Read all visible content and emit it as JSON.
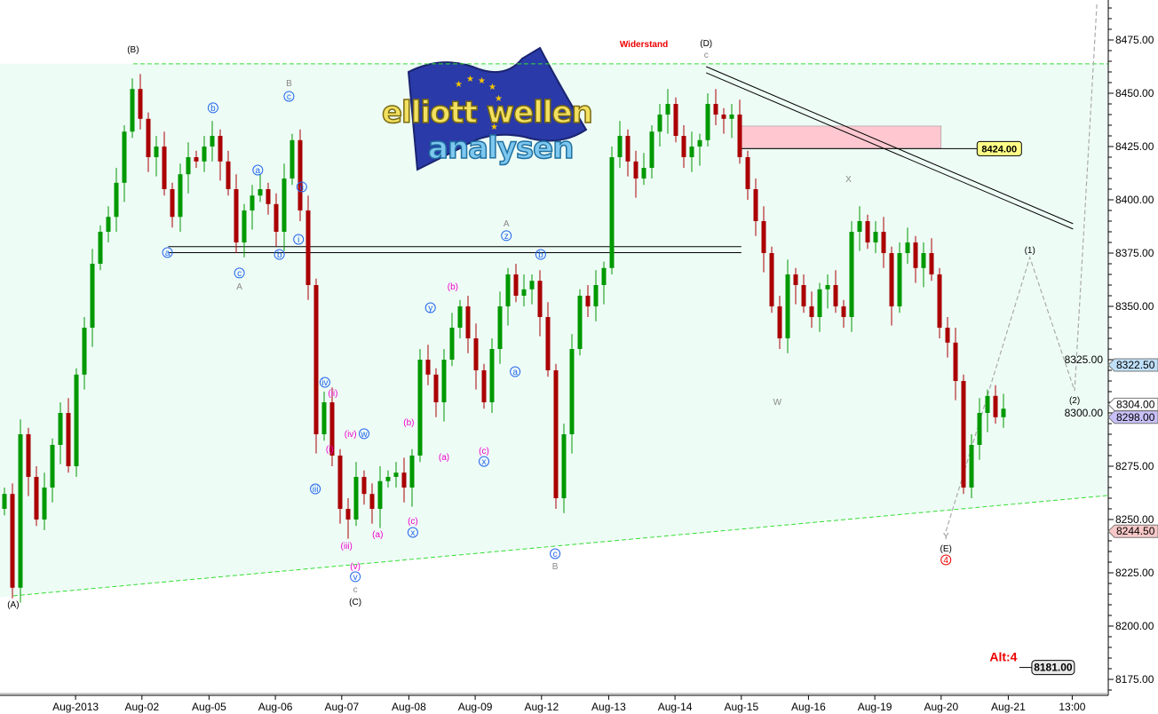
{
  "logo": {
    "line1": "elliott wellen",
    "line2": "analysen"
  },
  "chart_data": {
    "type": "candlestick",
    "title": "",
    "xlabel": "",
    "ylabel": "",
    "ylim": [
      8165,
      8493
    ],
    "grid": false,
    "colors": {
      "up": "#009900",
      "down": "#aa0000",
      "channel": "#33dd33",
      "fill": "#eefcf6"
    },
    "y_ticks": [
      8475,
      8450,
      8425,
      8400,
      8375,
      8350,
      8325,
      8300,
      8275,
      8250,
      8225,
      8200,
      8175
    ],
    "y_tick_labels": [
      "8475.00",
      "8450.00",
      "8425.00",
      "8400.00",
      "8375.00",
      "8350.00",
      "8325.00",
      "8300.00",
      "8275.00",
      "8250.00",
      "8225.00",
      "8200.00",
      "8175.00"
    ],
    "x_ticks": [
      {
        "label": "Aug-2013",
        "bar": 8.9
      },
      {
        "label": "Aug-02",
        "bar": 17.2
      },
      {
        "label": "Aug-05",
        "bar": 25.6
      },
      {
        "label": "Aug-06",
        "bar": 33.9
      },
      {
        "label": "Aug-07",
        "bar": 42.2
      },
      {
        "label": "Aug-08",
        "bar": 50.6
      },
      {
        "label": "Aug-09",
        "bar": 58.9
      },
      {
        "label": "Aug-12",
        "bar": 67.2
      },
      {
        "label": "Aug-13",
        "bar": 75.6
      },
      {
        "label": "Aug-14",
        "bar": 83.9
      },
      {
        "label": "Aug-15",
        "bar": 92.2
      },
      {
        "label": "Aug-16",
        "bar": 100.6
      },
      {
        "label": "Aug-19",
        "bar": 108.9
      },
      {
        "label": "Aug-20",
        "bar": 117.2
      },
      {
        "label": "Aug-21",
        "bar": 125.6
      },
      {
        "label": "13:00",
        "bar": 133.6
      }
    ],
    "first_open": 8255,
    "closes": [
      8262,
      8218,
      8290,
      8270,
      8250,
      8265,
      8285,
      8300,
      8275,
      8318,
      8340,
      8370,
      8385,
      8392,
      8408,
      8432,
      8452,
      8438,
      8420,
      8425,
      8405,
      8392,
      8412,
      8420,
      8418,
      8425,
      8430,
      8418,
      8405,
      8380,
      8395,
      8402,
      8405,
      8398,
      8385,
      8410,
      8428,
      8395,
      8360,
      8290,
      8305,
      8280,
      8255,
      8250,
      8270,
      8262,
      8255,
      8268,
      8270,
      8272,
      8265,
      8280,
      8325,
      8318,
      8305,
      8325,
      8340,
      8350,
      8335,
      8320,
      8305,
      8330,
      8350,
      8365,
      8355,
      8358,
      8362,
      8345,
      8320,
      8260,
      8290,
      8330,
      8355,
      8350,
      8360,
      8368,
      8420,
      8430,
      8418,
      8410,
      8415,
      8432,
      8440,
      8445,
      8430,
      8420,
      8425,
      8428,
      8445,
      8440,
      8438,
      8440,
      8420,
      8405,
      8390,
      8375,
      8350,
      8335,
      8365,
      8360,
      8350,
      8345,
      8358,
      8360,
      8350,
      8345,
      8385,
      8390,
      8380,
      8385,
      8375,
      8350,
      8375,
      8380,
      8368,
      8375,
      8365,
      8340,
      8333,
      8315,
      8265,
      8285,
      8300,
      8308,
      8298,
      8302
    ],
    "price_tags": [
      {
        "label": "8322.50",
        "price": 8322.5,
        "color": "#bfe0f8"
      },
      {
        "label": "8304.00",
        "price": 8304.0,
        "color": "#ffffff"
      },
      {
        "label": "8298.00",
        "price": 8298.0,
        "color": "#c8c0f8"
      },
      {
        "label": "8244.50",
        "price": 8244.5,
        "color": "#f8c8c8"
      }
    ],
    "levels": [
      {
        "label": "8424.00",
        "price": 8424,
        "from_bar": 92.2,
        "to_bar": 121.7,
        "color": "#ffff88"
      }
    ],
    "resistance_zone": {
      "from_bar": 92.2,
      "to_bar": 117.2,
      "low": 8424.2,
      "high": 8434.6,
      "color": "#ffc8d0"
    },
    "alt_label": {
      "text": "Alt:4",
      "value_label": "8181.00",
      "price": 8181,
      "bar": 126.1
    },
    "lines": [
      {
        "kind": "support-1",
        "color": "#000000",
        "dash": false,
        "points": [
          [
            20.5,
            8378.0
          ],
          [
            92.2,
            8378.0
          ]
        ]
      },
      {
        "kind": "support-2",
        "color": "#000000",
        "dash": false,
        "points": [
          [
            20.5,
            8375.2
          ],
          [
            92.2,
            8375.2
          ]
        ]
      },
      {
        "kind": "channel-upper",
        "color": "#33dd33",
        "dash": true,
        "points": [
          [
            16.1,
            8463.8
          ],
          [
            138.1,
            8463.8
          ]
        ]
      },
      {
        "kind": "channel-lower",
        "color": "#33dd33",
        "dash": true,
        "points": [
          [
            1.1,
            8214.2
          ],
          [
            138.1,
            8261.3
          ]
        ]
      },
      {
        "kind": "trend-1",
        "color": "#000000",
        "dash": false,
        "points": [
          [
            87.8,
            8462.5
          ],
          [
            133.7,
            8388.8
          ]
        ]
      },
      {
        "kind": "trend-2",
        "color": "#000000",
        "dash": false,
        "points": [
          [
            87.8,
            8459.6
          ],
          [
            133.7,
            8386.3
          ]
        ]
      },
      {
        "kind": "projection",
        "color": "#aaaaaa",
        "dash": true,
        "points": [
          [
            117.8,
            8244.5
          ],
          [
            128.3,
            8373
          ],
          [
            133.9,
            8310.4
          ],
          [
            136.7,
            8493
          ]
        ]
      }
    ],
    "annotations": [
      {
        "text": "(A)",
        "bar": 1.1,
        "price": 8208.8,
        "color": "#000000"
      },
      {
        "text": "(B)",
        "bar": 16.1,
        "price": 8469.2,
        "color": "#000000"
      },
      {
        "text": "(D)",
        "bar": 87.8,
        "price": 8472.1,
        "color": "#000000"
      },
      {
        "text": "c",
        "bar": 87.8,
        "price": 8466.7,
        "color": "#888888"
      },
      {
        "text": "Widerstand",
        "bar": 80,
        "price": 8471.7,
        "color": "#ee0000",
        "bold": true
      },
      {
        "text": "(C)",
        "bar": 43.9,
        "price": 8210,
        "color": "#000000"
      },
      {
        "text": "c",
        "bar": 43.9,
        "price": 8215.8,
        "color": "#888888"
      },
      {
        "text": "v",
        "bar": 43.9,
        "price": 8221.7,
        "color": "#2266ee",
        "circle": true
      },
      {
        "text": "(v)",
        "bar": 43.9,
        "price": 8226.7,
        "color": "#ee00cc"
      },
      {
        "text": "(iii)",
        "bar": 42.8,
        "price": 8236.3,
        "color": "#ee00cc"
      },
      {
        "text": "(ii)",
        "bar": 41.1,
        "price": 8307.9,
        "color": "#ee00cc"
      },
      {
        "text": "iv",
        "bar": 40.1,
        "price": 8312.9,
        "color": "#2266ee",
        "circle": true
      },
      {
        "text": "iii",
        "bar": 38.9,
        "price": 8262.9,
        "color": "#2266ee",
        "circle": true
      },
      {
        "text": "(i)",
        "bar": 40.7,
        "price": 8281.7,
        "color": "#ee00cc"
      },
      {
        "text": "(iv)",
        "bar": 43.3,
        "price": 8288.8,
        "color": "#ee00cc"
      },
      {
        "text": "w",
        "bar": 45,
        "price": 8288.8,
        "color": "#2266ee",
        "circle": true
      },
      {
        "text": "(a)",
        "bar": 46.7,
        "price": 8241.7,
        "color": "#ee00cc"
      },
      {
        "text": "x",
        "bar": 51.1,
        "price": 8242.5,
        "color": "#2266ee",
        "circle": true
      },
      {
        "text": "(c)",
        "bar": 51.1,
        "price": 8247.9,
        "color": "#ee00cc"
      },
      {
        "text": "(b)",
        "bar": 50.6,
        "price": 8294.2,
        "color": "#ee00cc"
      },
      {
        "text": "(a)",
        "bar": 55,
        "price": 8277.9,
        "color": "#ee00cc"
      },
      {
        "text": "(c)",
        "bar": 60,
        "price": 8280.8,
        "color": "#ee00cc"
      },
      {
        "text": "x",
        "bar": 60,
        "price": 8275.8,
        "color": "#2266ee",
        "circle": true
      },
      {
        "text": "(b)",
        "bar": 56.1,
        "price": 8357.9,
        "color": "#ee00cc"
      },
      {
        "text": "y",
        "bar": 53.3,
        "price": 8347.9,
        "color": "#2266ee",
        "circle": true
      },
      {
        "text": "A",
        "bar": 62.8,
        "price": 8387.5,
        "color": "#888888"
      },
      {
        "text": "z",
        "bar": 62.8,
        "price": 8381.7,
        "color": "#2266ee",
        "circle": true
      },
      {
        "text": "b",
        "bar": 67.1,
        "price": 8372.9,
        "color": "#2266ee",
        "circle": true
      },
      {
        "text": "a",
        "bar": 63.9,
        "price": 8317.9,
        "color": "#2266ee",
        "circle": true
      },
      {
        "text": "c",
        "bar": 68.9,
        "price": 8232.5,
        "color": "#2266ee",
        "circle": true
      },
      {
        "text": "B",
        "bar": 68.9,
        "price": 8226.7,
        "color": "#888888"
      },
      {
        "text": "a",
        "bar": 20.4,
        "price": 8373.8,
        "color": "#2266ee",
        "circle": true
      },
      {
        "text": "c",
        "bar": 29.4,
        "price": 8364.2,
        "color": "#2266ee",
        "circle": true
      },
      {
        "text": "A",
        "bar": 29.4,
        "price": 8357.9,
        "color": "#888888"
      },
      {
        "text": "b",
        "bar": 34.4,
        "price": 8372.9,
        "color": "#2266ee",
        "circle": true
      },
      {
        "text": "i",
        "bar": 36.8,
        "price": 8380,
        "color": "#2266ee",
        "circle": true
      },
      {
        "text": "ii",
        "bar": 37.2,
        "price": 8404.6,
        "color": "#2266ee",
        "circle": true
      },
      {
        "text": "c",
        "bar": 35.6,
        "price": 8447.1,
        "color": "#2266ee",
        "circle": true
      },
      {
        "text": "B",
        "bar": 35.6,
        "price": 8453.3,
        "color": "#888888"
      },
      {
        "text": "b",
        "bar": 26.1,
        "price": 8441.7,
        "color": "#2266ee",
        "circle": true
      },
      {
        "text": "a",
        "bar": 31.7,
        "price": 8412.5,
        "color": "#2266ee",
        "circle": true
      },
      {
        "text": "W",
        "bar": 96.7,
        "price": 8303.8,
        "color": "#888888"
      },
      {
        "text": "X",
        "bar": 105.6,
        "price": 8408.3,
        "color": "#888888"
      },
      {
        "text": "Y",
        "bar": 117.8,
        "price": 8240.8,
        "color": "#888888"
      },
      {
        "text": "(E)",
        "bar": 117.8,
        "price": 8235,
        "color": "#000000"
      },
      {
        "text": "4",
        "bar": 117.8,
        "price": 8229.6,
        "color": "#ee0000",
        "circle": true
      },
      {
        "text": "(1)",
        "bar": 128.3,
        "price": 8375,
        "color": "#000000"
      },
      {
        "text": "(2)",
        "bar": 133.9,
        "price": 8304.6,
        "color": "#000000"
      }
    ]
  }
}
